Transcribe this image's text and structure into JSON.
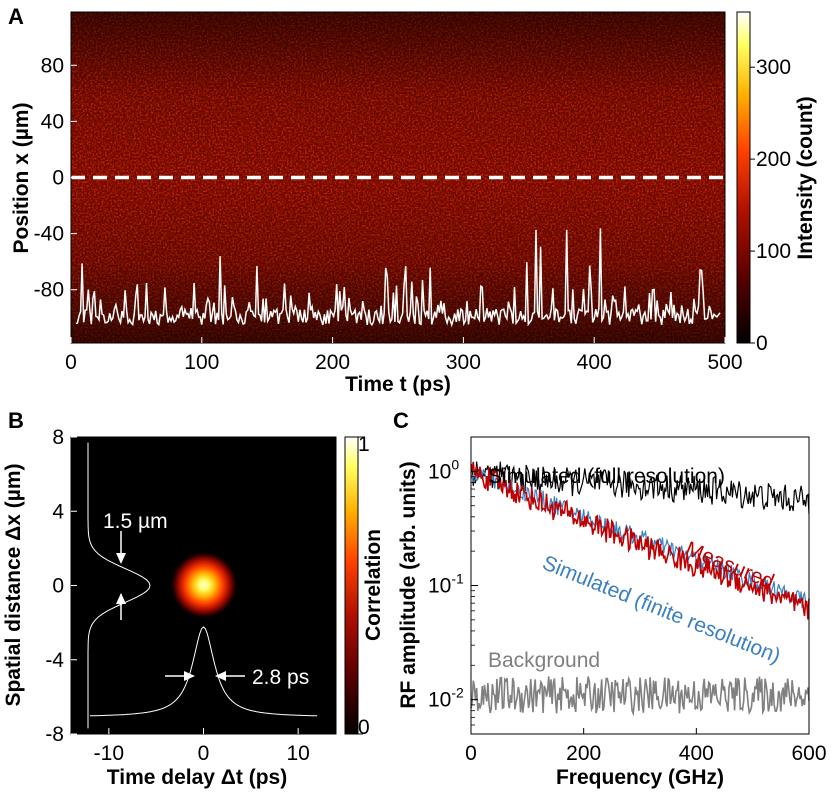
{
  "chart_data": [
    {
      "panel": "A",
      "type": "heatmap",
      "xlabel": "Time t (ps)",
      "ylabel": "Position x (µm)",
      "xlim": [
        0,
        500
      ],
      "ylim": [
        -118,
        118
      ],
      "x_ticks": [
        "0",
        "100",
        "200",
        "300",
        "400",
        "500"
      ],
      "y_ticks": [
        "80",
        "40",
        "0",
        "-40",
        "-80"
      ],
      "y_tick_values": [
        80,
        40,
        0,
        -40,
        -80
      ],
      "x_tick_values": [
        0,
        100,
        200,
        300,
        400,
        500
      ],
      "colorbar": {
        "label": "Intensity (count)",
        "range": [
          0,
          360
        ],
        "ticks": [
          "300",
          "200",
          "100",
          "0"
        ],
        "tick_values": [
          300,
          200,
          100,
          0
        ]
      },
      "dashed_line_at_position": 0,
      "overlay": "intensity trace at x = 0 vs time (spiky speckle signal)",
      "colormap": [
        "#000000",
        "#5a0000",
        "#b01000",
        "#ff4000",
        "#ffb000",
        "#ffff60",
        "#ffffff"
      ]
    },
    {
      "panel": "B",
      "type": "heatmap",
      "xlabel": "Time delay Δt (ps)",
      "ylabel": "Spatial distance Δx (µm)",
      "xlim": [
        -14,
        14
      ],
      "ylim": [
        -8,
        8
      ],
      "x_ticks": [
        "-10",
        "0",
        "10"
      ],
      "x_tick_values": [
        -10,
        0,
        10
      ],
      "y_ticks": [
        "8",
        "4",
        "0",
        "-4",
        "-8"
      ],
      "y_tick_values": [
        8,
        4,
        0,
        -4,
        -8
      ],
      "colorbar": {
        "label": "Correlation",
        "range": [
          0,
          1
        ],
        "ticks": [
          "1",
          "0"
        ],
        "tick_values": [
          1,
          0
        ]
      },
      "peak_center": [
        0,
        0
      ],
      "annotations": {
        "spatial_width": "1.5 µm",
        "temporal_width": "2.8 ps"
      }
    },
    {
      "panel": "C",
      "type": "line",
      "xlabel": "Frequency (GHz)",
      "ylabel": "RF amplitude (arb. units)",
      "xlim": [
        0,
        600
      ],
      "y_scale": "log",
      "ylim": [
        0.005,
        2
      ],
      "x_ticks": [
        "0",
        "200",
        "400",
        "600"
      ],
      "x_tick_values": [
        0,
        200,
        400,
        600
      ],
      "y_tick_values": [
        1,
        0.1,
        0.01
      ],
      "y_tick_base": "10",
      "y_tick_exponents": [
        "0",
        "-1",
        "-2"
      ],
      "series": [
        {
          "name": "Simulated (full resolution)",
          "color": "#000000",
          "x": [
            0,
            100,
            200,
            300,
            400,
            500,
            600
          ],
          "values": [
            1.0,
            0.85,
            0.8,
            0.75,
            0.7,
            0.62,
            0.55
          ]
        },
        {
          "name": "Simulated (finite resolution)",
          "color": "#3a7fc0",
          "x": [
            0,
            100,
            200,
            300,
            400,
            500,
            600
          ],
          "values": [
            1.0,
            0.64,
            0.4,
            0.26,
            0.17,
            0.11,
            0.07
          ]
        },
        {
          "name": "Measured",
          "color": "#c00000",
          "x": [
            0,
            100,
            200,
            300,
            400,
            500,
            600
          ],
          "values": [
            1.0,
            0.6,
            0.37,
            0.23,
            0.15,
            0.1,
            0.06
          ]
        },
        {
          "name": "Background",
          "color": "#808080",
          "x": [
            0,
            100,
            200,
            300,
            400,
            500,
            600
          ],
          "values": [
            0.011,
            0.011,
            0.011,
            0.011,
            0.011,
            0.011,
            0.011
          ]
        }
      ]
    }
  ]
}
